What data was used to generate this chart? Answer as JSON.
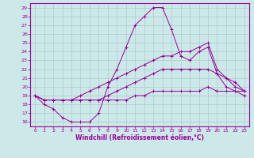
{
  "xlabel": "Windchill (Refroidissement éolien,°C)",
  "bg_color": "#cce8e8",
  "line_color": "#990099",
  "grid_color": "#aacccc",
  "xlim": [
    -0.5,
    23.5
  ],
  "ylim": [
    15.5,
    29.5
  ],
  "xticks": [
    0,
    1,
    2,
    3,
    4,
    5,
    6,
    7,
    8,
    9,
    10,
    11,
    12,
    13,
    14,
    15,
    16,
    17,
    18,
    19,
    20,
    21,
    22,
    23
  ],
  "yticks": [
    16,
    17,
    18,
    19,
    20,
    21,
    22,
    23,
    24,
    25,
    26,
    27,
    28,
    29
  ],
  "series": [
    {
      "x": [
        0,
        1,
        2,
        3,
        4,
        5,
        6,
        7,
        8,
        9,
        10,
        11,
        12,
        13,
        14,
        15,
        16,
        17,
        18,
        19,
        20,
        21,
        22,
        23
      ],
      "y": [
        19,
        18,
        17.5,
        16.5,
        16,
        16,
        16,
        17,
        20,
        22,
        24.5,
        27,
        28,
        29,
        29,
        26.5,
        23.5,
        23,
        24,
        24.5,
        21.5,
        20,
        19.5,
        19
      ]
    },
    {
      "x": [
        0,
        1,
        2,
        3,
        4,
        5,
        6,
        7,
        8,
        9,
        10,
        11,
        12,
        13,
        14,
        15,
        16,
        17,
        18,
        19,
        20,
        21,
        22,
        23
      ],
      "y": [
        19,
        18.5,
        18.5,
        18.5,
        18.5,
        19,
        19.5,
        20,
        20.5,
        21,
        21.5,
        22,
        22.5,
        23,
        23.5,
        23.5,
        24,
        24,
        24.5,
        25,
        22,
        21,
        20,
        19.5
      ]
    },
    {
      "x": [
        0,
        1,
        2,
        3,
        4,
        5,
        6,
        7,
        8,
        9,
        10,
        11,
        12,
        13,
        14,
        15,
        16,
        17,
        18,
        19,
        20,
        21,
        22,
        23
      ],
      "y": [
        19,
        18.5,
        18.5,
        18.5,
        18.5,
        18.5,
        18.5,
        18.5,
        19,
        19.5,
        20,
        20.5,
        21,
        21.5,
        22,
        22,
        22,
        22,
        22,
        22,
        21.5,
        21,
        20.5,
        19.5
      ]
    },
    {
      "x": [
        0,
        1,
        2,
        3,
        4,
        5,
        6,
        7,
        8,
        9,
        10,
        11,
        12,
        13,
        14,
        15,
        16,
        17,
        18,
        19,
        20,
        21,
        22,
        23
      ],
      "y": [
        19,
        18.5,
        18.5,
        18.5,
        18.5,
        18.5,
        18.5,
        18.5,
        18.5,
        18.5,
        18.5,
        19,
        19,
        19.5,
        19.5,
        19.5,
        19.5,
        19.5,
        19.5,
        20,
        19.5,
        19.5,
        19.5,
        19.5
      ]
    }
  ]
}
